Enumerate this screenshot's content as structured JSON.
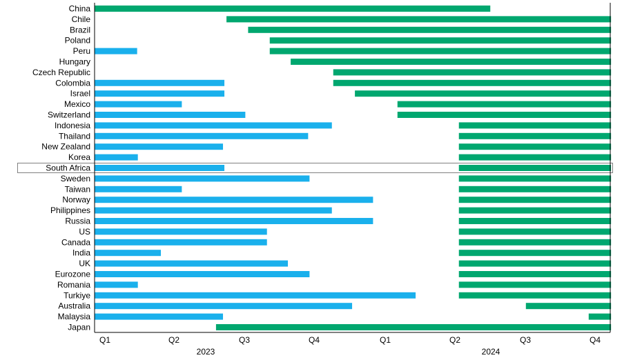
{
  "chart_data": {
    "type": "bar",
    "subtype": "timeline-range",
    "x_axis": {
      "quarter_ticks": [
        "Q1",
        "Q2",
        "Q3",
        "Q4",
        "Q1",
        "Q2",
        "Q3",
        "Q4"
      ],
      "years": [
        "2023",
        "2024"
      ],
      "range_quarters": [
        0,
        8
      ]
    },
    "colors": {
      "series_a": "#1ab0ec",
      "series_b": "#00a76f",
      "highlight_border": "#808080"
    },
    "highlighted_row": "South Africa",
    "rows": [
      {
        "name": "China",
        "blue": null,
        "green": [
          0.0,
          5.67
        ]
      },
      {
        "name": "Chile",
        "blue": null,
        "green": [
          1.89,
          7.4
        ]
      },
      {
        "name": "Brazil",
        "blue": null,
        "green": [
          2.2,
          7.4
        ]
      },
      {
        "name": "Poland",
        "blue": null,
        "green": [
          2.51,
          7.4
        ]
      },
      {
        "name": "Peru",
        "blue": [
          0.0,
          0.61
        ],
        "green": [
          2.51,
          7.4
        ]
      },
      {
        "name": "Hungary",
        "blue": null,
        "green": [
          2.81,
          7.4
        ]
      },
      {
        "name": "Czech Republic",
        "blue": null,
        "green": [
          3.42,
          7.4
        ]
      },
      {
        "name": "Colombia",
        "blue": [
          0.0,
          1.86
        ],
        "green": [
          3.42,
          7.4
        ]
      },
      {
        "name": "Israel",
        "blue": [
          0.0,
          1.86
        ],
        "green": [
          3.73,
          7.4
        ]
      },
      {
        "name": "Mexico",
        "blue": [
          0.0,
          1.25
        ],
        "green": [
          4.34,
          7.4
        ]
      },
      {
        "name": "Switzerland",
        "blue": [
          0.0,
          2.16
        ],
        "green": [
          4.34,
          7.4
        ]
      },
      {
        "name": "Indonesia",
        "blue": [
          0.0,
          3.4
        ],
        "green": [
          5.22,
          7.4
        ]
      },
      {
        "name": "Thailand",
        "blue": [
          0.0,
          3.06
        ],
        "green": [
          5.22,
          7.4
        ]
      },
      {
        "name": "New Zealand",
        "blue": [
          0.0,
          1.84
        ],
        "green": [
          5.22,
          7.4
        ]
      },
      {
        "name": "Korea",
        "blue": [
          0.0,
          0.62
        ],
        "green": [
          5.22,
          7.4
        ]
      },
      {
        "name": "South Africa",
        "blue": [
          0.0,
          1.86
        ],
        "green": [
          5.22,
          7.4
        ]
      },
      {
        "name": "Sweden",
        "blue": [
          0.0,
          3.08
        ],
        "green": [
          5.22,
          7.4
        ]
      },
      {
        "name": "Taiwan",
        "blue": [
          0.0,
          1.25
        ],
        "green": [
          5.22,
          7.4
        ]
      },
      {
        "name": "Norway",
        "blue": [
          0.0,
          3.99
        ],
        "green": [
          5.22,
          7.4
        ]
      },
      {
        "name": "Philippines",
        "blue": [
          0.0,
          3.4
        ],
        "green": [
          5.22,
          7.4
        ]
      },
      {
        "name": "Russia",
        "blue": [
          0.0,
          3.99
        ],
        "green": [
          5.22,
          7.4
        ]
      },
      {
        "name": "US",
        "blue": [
          0.0,
          2.47
        ],
        "green": [
          5.22,
          7.4
        ]
      },
      {
        "name": "Canada",
        "blue": [
          0.0,
          2.47
        ],
        "green": [
          5.22,
          7.4
        ]
      },
      {
        "name": "India",
        "blue": [
          0.0,
          0.95
        ],
        "green": [
          5.22,
          7.4
        ]
      },
      {
        "name": "UK",
        "blue": [
          0.0,
          2.77
        ],
        "green": [
          5.22,
          7.4
        ]
      },
      {
        "name": "Eurozone",
        "blue": [
          0.0,
          3.08
        ],
        "green": [
          5.22,
          7.4
        ]
      },
      {
        "name": "Romania",
        "blue": [
          0.0,
          0.62
        ],
        "green": [
          5.22,
          7.4
        ]
      },
      {
        "name": "Turkiye",
        "blue": [
          0.0,
          4.6
        ],
        "green": [
          5.22,
          7.4
        ]
      },
      {
        "name": "Australia",
        "blue": [
          0.0,
          3.69
        ],
        "green": [
          6.18,
          7.4
        ]
      },
      {
        "name": "Malaysia",
        "blue": [
          0.0,
          1.84
        ],
        "green": [
          7.08,
          7.4
        ]
      },
      {
        "name": "Japan",
        "blue": null,
        "green": [
          1.74,
          7.4
        ]
      }
    ]
  }
}
